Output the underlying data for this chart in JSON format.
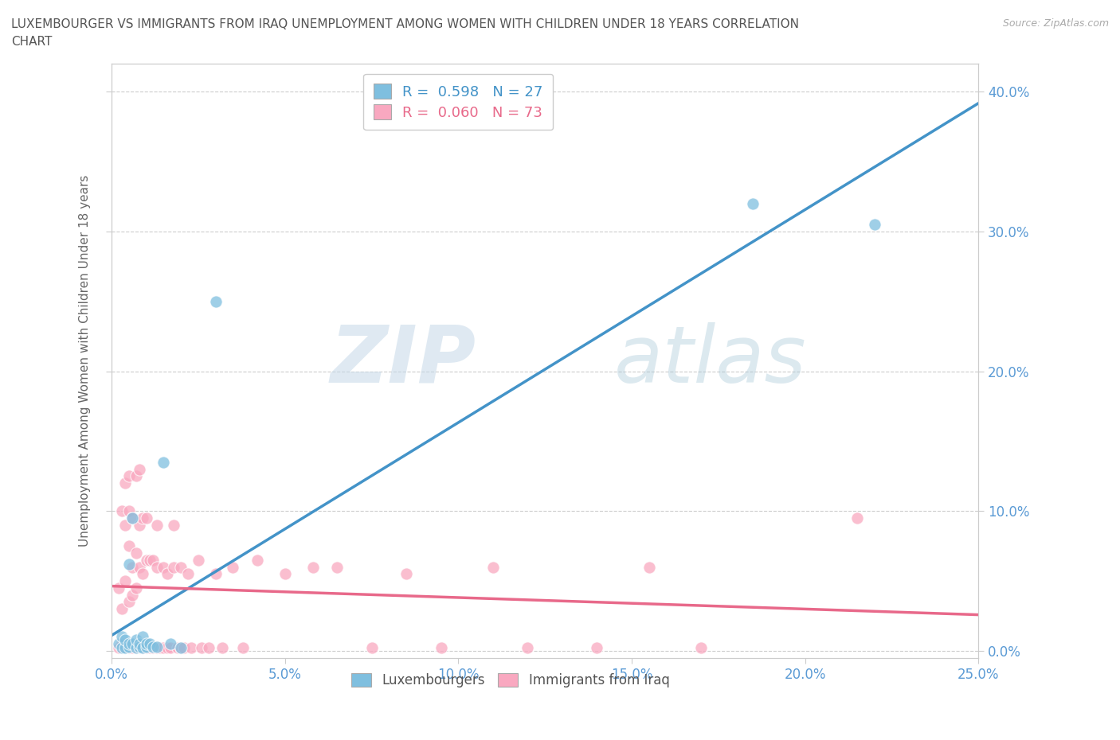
{
  "title_line1": "LUXEMBOURGER VS IMMIGRANTS FROM IRAQ UNEMPLOYMENT AMONG WOMEN WITH CHILDREN UNDER 18 YEARS CORRELATION",
  "title_line2": "CHART",
  "source": "Source: ZipAtlas.com",
  "ylabel": "Unemployment Among Women with Children Under 18 years",
  "xlim": [
    0.0,
    0.25
  ],
  "ylim": [
    -0.005,
    0.42
  ],
  "xticks": [
    0.0,
    0.05,
    0.1,
    0.15,
    0.2,
    0.25
  ],
  "yticks": [
    0.0,
    0.1,
    0.2,
    0.3,
    0.4
  ],
  "legend1_R": "0.598",
  "legend1_N": "27",
  "legend2_R": "0.060",
  "legend2_N": "73",
  "color_lux": "#7fbfdf",
  "color_iraq": "#f9a8c0",
  "color_lux_line": "#4393c8",
  "color_iraq_line": "#e8698a",
  "watermark_zip": "ZIP",
  "watermark_atlas": "atlas",
  "lux_x": [
    0.002,
    0.003,
    0.003,
    0.004,
    0.004,
    0.005,
    0.005,
    0.005,
    0.006,
    0.006,
    0.007,
    0.007,
    0.008,
    0.008,
    0.009,
    0.009,
    0.01,
    0.01,
    0.011,
    0.012,
    0.013,
    0.015,
    0.017,
    0.02,
    0.03,
    0.185,
    0.22
  ],
  "lux_y": [
    0.005,
    0.002,
    0.01,
    0.002,
    0.008,
    0.003,
    0.062,
    0.005,
    0.005,
    0.095,
    0.002,
    0.008,
    0.003,
    0.005,
    0.002,
    0.01,
    0.003,
    0.005,
    0.005,
    0.003,
    0.003,
    0.135,
    0.005,
    0.002,
    0.25,
    0.32,
    0.305
  ],
  "iraq_x": [
    0.002,
    0.002,
    0.003,
    0.003,
    0.003,
    0.004,
    0.004,
    0.004,
    0.004,
    0.005,
    0.005,
    0.005,
    0.005,
    0.005,
    0.006,
    0.006,
    0.006,
    0.006,
    0.007,
    0.007,
    0.007,
    0.007,
    0.008,
    0.008,
    0.008,
    0.008,
    0.009,
    0.009,
    0.009,
    0.01,
    0.01,
    0.01,
    0.011,
    0.011,
    0.012,
    0.012,
    0.013,
    0.013,
    0.013,
    0.014,
    0.015,
    0.015,
    0.016,
    0.016,
    0.017,
    0.018,
    0.018,
    0.019,
    0.02,
    0.02,
    0.021,
    0.022,
    0.023,
    0.025,
    0.026,
    0.028,
    0.03,
    0.032,
    0.035,
    0.038,
    0.042,
    0.05,
    0.058,
    0.065,
    0.075,
    0.085,
    0.095,
    0.11,
    0.12,
    0.14,
    0.155,
    0.17,
    0.215
  ],
  "iraq_y": [
    0.002,
    0.045,
    0.005,
    0.03,
    0.1,
    0.002,
    0.05,
    0.09,
    0.12,
    0.002,
    0.035,
    0.075,
    0.1,
    0.125,
    0.002,
    0.04,
    0.06,
    0.095,
    0.002,
    0.045,
    0.07,
    0.125,
    0.002,
    0.06,
    0.09,
    0.13,
    0.002,
    0.055,
    0.095,
    0.002,
    0.065,
    0.095,
    0.002,
    0.065,
    0.002,
    0.065,
    0.002,
    0.06,
    0.09,
    0.002,
    0.002,
    0.06,
    0.002,
    0.055,
    0.002,
    0.06,
    0.09,
    0.002,
    0.002,
    0.06,
    0.002,
    0.055,
    0.002,
    0.065,
    0.002,
    0.002,
    0.055,
    0.002,
    0.06,
    0.002,
    0.065,
    0.055,
    0.06,
    0.06,
    0.002,
    0.055,
    0.002,
    0.06,
    0.002,
    0.002,
    0.06,
    0.002,
    0.095
  ]
}
